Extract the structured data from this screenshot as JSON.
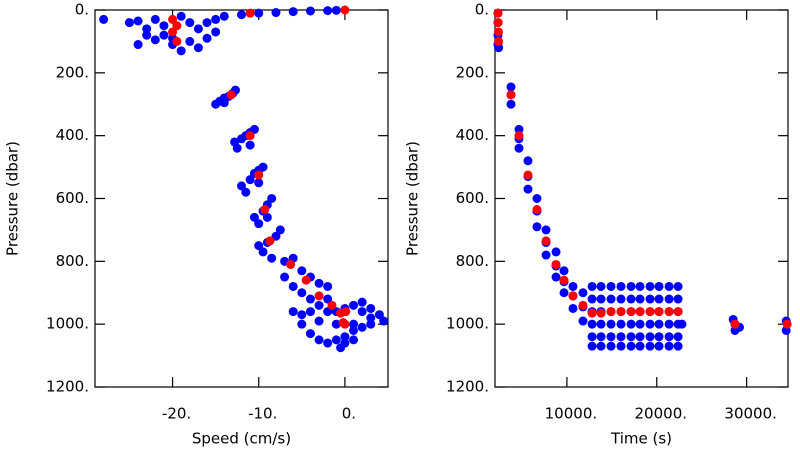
{
  "chart_data": [
    {
      "type": "scatter",
      "x_label": "Speed (cm/s)",
      "y_label": "Pressure (dbar)",
      "xlim": [
        -29,
        5
      ],
      "ylim": [
        0,
        1200
      ],
      "y_inverted": true,
      "xticks": [
        {
          "value": -20,
          "label": "-20."
        },
        {
          "value": -10,
          "label": "-10."
        },
        {
          "value": 0,
          "label": "0."
        }
      ],
      "yticks": [
        {
          "value": 0,
          "label": "0."
        },
        {
          "value": 200,
          "label": "200."
        },
        {
          "value": 400,
          "label": "400."
        },
        {
          "value": 600,
          "label": "600."
        },
        {
          "value": 800,
          "label": "800."
        },
        {
          "value": 1000,
          "label": "1000."
        },
        {
          "value": 1200,
          "label": "1200."
        }
      ],
      "series": [
        {
          "color": "#0000ff",
          "x": [
            -28,
            -25,
            -24,
            -23,
            -24,
            -22,
            -21,
            -20,
            -18,
            -17,
            -16,
            -15,
            -14,
            -12,
            -10,
            -8,
            -6,
            -4,
            -2,
            -1,
            -22,
            -19,
            -18,
            -16,
            -21,
            -23,
            -17,
            -19,
            -20,
            -15,
            -15,
            -14.5,
            -14,
            -13.5,
            -13,
            -12.7,
            -14,
            -12.8,
            -12,
            -11.5,
            -11,
            -10.5,
            -12.5,
            -11,
            -12,
            -11,
            -10.5,
            -10,
            -9.5,
            -11.5,
            -10,
            -10.5,
            -9.5,
            -9,
            -8.5,
            -10,
            -9,
            -10,
            -9,
            -8,
            -7.5,
            -9.5,
            -8.5,
            -7,
            -6,
            -5,
            -4,
            -3,
            -2,
            -7,
            -6,
            -5,
            -4,
            -3,
            -2,
            -1,
            0,
            1,
            2,
            3,
            4,
            4.5,
            3,
            2,
            1,
            0,
            -1,
            -2,
            -3,
            -4,
            -5,
            -6,
            -5,
            -3,
            -1,
            1,
            3,
            2,
            -0.5,
            0,
            1,
            -2,
            -4
          ],
          "y": [
            30,
            40,
            35,
            60,
            110,
            95,
            80,
            110,
            100,
            60,
            40,
            30,
            20,
            15,
            10,
            8,
            5,
            3,
            2,
            1,
            30,
            20,
            40,
            90,
            50,
            80,
            120,
            130,
            90,
            70,
            300,
            290,
            280,
            275,
            265,
            255,
            295,
            420,
            410,
            400,
            390,
            380,
            440,
            430,
            560,
            540,
            520,
            510,
            500,
            580,
            550,
            660,
            640,
            620,
            600,
            680,
            660,
            750,
            740,
            720,
            700,
            770,
            790,
            800,
            790,
            830,
            850,
            870,
            880,
            850,
            880,
            900,
            920,
            940,
            960,
            960,
            950,
            940,
            930,
            950,
            970,
            990,
            1000,
            1010,
            1020,
            1040,
            1050,
            1060,
            1050,
            1030,
            1000,
            960,
            970,
            990,
            1000,
            1000,
            980,
            960,
            1075,
            1060,
            1050,
            920,
            960
          ]
        },
        {
          "color": "#ff0000",
          "x": [
            0,
            -11,
            -20,
            -19.5,
            -20,
            -19.5,
            -13.2,
            -11,
            -10,
            -9.3,
            -8.7,
            -6.3,
            -4.5,
            -3,
            -1.5,
            -0.5,
            0.1,
            -0.2,
            0
          ],
          "y": [
            0,
            10,
            30,
            50,
            70,
            100,
            270,
            400,
            525,
            635,
            735,
            810,
            860,
            910,
            940,
            965,
            960,
            995,
            1000
          ]
        }
      ]
    },
    {
      "type": "scatter",
      "x_label": "Time (s)",
      "y_label": "Pressure (dbar)",
      "xlim": [
        2000,
        34600
      ],
      "ylim": [
        0,
        1200
      ],
      "y_inverted": true,
      "xticks": [
        {
          "value": 10000,
          "label": "10000."
        },
        {
          "value": 20000,
          "label": "20000."
        },
        {
          "value": 30000,
          "label": "30000."
        }
      ],
      "yticks": [
        {
          "value": 0,
          "label": "0."
        },
        {
          "value": 200,
          "label": "200."
        },
        {
          "value": 400,
          "label": "400."
        },
        {
          "value": 600,
          "label": "600."
        },
        {
          "value": 800,
          "label": "800."
        },
        {
          "value": 1000,
          "label": "1000."
        },
        {
          "value": 1200,
          "label": "1200."
        }
      ],
      "series": [
        {
          "color": "#0000ff",
          "x": [
            2330,
            2330,
            2330,
            2330,
            2400,
            3780,
            3780,
            3780,
            4670,
            4670,
            4670,
            5670,
            5670,
            5670,
            6670,
            6670,
            6670,
            7680,
            7680,
            7680,
            8790,
            8790,
            8790,
            9680,
            9680,
            9680,
            10680,
            10680,
            10680,
            11790,
            11790,
            11790,
            12800,
            12800,
            12800,
            12800,
            12800,
            12800,
            13800,
            13800,
            13800,
            13800,
            13800,
            13800,
            14910,
            14910,
            14910,
            14910,
            14910,
            14910,
            16020,
            16020,
            16020,
            16020,
            16020,
            16020,
            17140,
            17140,
            17140,
            17140,
            17140,
            17140,
            18140,
            18140,
            18140,
            18140,
            18140,
            18140,
            19250,
            19250,
            19250,
            19250,
            19250,
            19250,
            20250,
            20250,
            20250,
            20250,
            20250,
            20250,
            21370,
            21370,
            21370,
            21370,
            21370,
            21370,
            22370,
            22370,
            22370,
            22370,
            22370,
            22370,
            22800,
            28500,
            28700,
            28700,
            29200,
            34400,
            34400
          ],
          "y": [
            10,
            40,
            80,
            110,
            120,
            245,
            270,
            300,
            380,
            410,
            440,
            480,
            530,
            570,
            600,
            640,
            690,
            700,
            740,
            780,
            770,
            815,
            850,
            830,
            865,
            900,
            880,
            910,
            950,
            900,
            945,
            990,
            880,
            920,
            960,
            1000,
            1040,
            1070,
            880,
            920,
            960,
            1000,
            1040,
            1070,
            880,
            920,
            960,
            1000,
            1040,
            1070,
            880,
            920,
            960,
            1000,
            1040,
            1070,
            880,
            920,
            960,
            1000,
            1040,
            1070,
            880,
            920,
            960,
            1000,
            1040,
            1070,
            880,
            920,
            960,
            1000,
            1040,
            1070,
            880,
            920,
            960,
            1000,
            1040,
            1070,
            880,
            920,
            960,
            1000,
            1040,
            1070,
            880,
            920,
            960,
            1000,
            1040,
            1070,
            1000,
            985,
            1000,
            1020,
            1010,
            990,
            1020
          ]
        },
        {
          "color": "#ff0000",
          "x": [
            2330,
            2350,
            2380,
            2400,
            3780,
            4670,
            5670,
            6670,
            7680,
            8790,
            9680,
            10680,
            11790,
            12800,
            13800,
            14910,
            16020,
            17140,
            18140,
            19250,
            20250,
            21370,
            22370,
            28710,
            34500
          ],
          "y": [
            10,
            40,
            70,
            100,
            270,
            400,
            525,
            635,
            735,
            810,
            860,
            910,
            940,
            965,
            965,
            960,
            960,
            960,
            960,
            960,
            960,
            960,
            960,
            1000,
            1000
          ]
        }
      ]
    }
  ]
}
